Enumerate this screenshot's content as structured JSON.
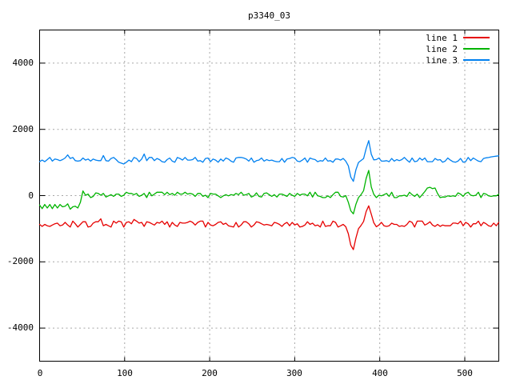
{
  "title": "p3340_03",
  "colors": {
    "background": "#ffffff",
    "border": "#000000",
    "grid": "#a6a6a6",
    "series1": "#e60000",
    "series2": "#00b400",
    "series3": "#0080f0"
  },
  "chart_data": {
    "type": "line",
    "title": "p3340_03",
    "xlabel": "",
    "ylabel": "",
    "xlim": [
      0,
      540
    ],
    "ylim": [
      -5000,
      5000
    ],
    "xticks": [
      0,
      100,
      200,
      300,
      400,
      500
    ],
    "yticks": [
      -4000,
      -2000,
      0,
      2000,
      4000
    ],
    "grid": true,
    "grid_style": "dashed",
    "legend_position": "top-right-inside",
    "x_start": 0,
    "x_step": 3,
    "series": [
      {
        "name": "line 1",
        "color": "#e60000",
        "values": [
          -870,
          -930,
          -870,
          -910,
          -930,
          -890,
          -850,
          -830,
          -910,
          -890,
          -810,
          -890,
          -950,
          -770,
          -850,
          -950,
          -870,
          -790,
          -790,
          -950,
          -930,
          -830,
          -790,
          -790,
          -700,
          -910,
          -870,
          -910,
          -950,
          -770,
          -830,
          -770,
          -790,
          -950,
          -810,
          -790,
          -850,
          -720,
          -770,
          -830,
          -810,
          -930,
          -790,
          -810,
          -850,
          -890,
          -810,
          -830,
          -770,
          -870,
          -790,
          -950,
          -810,
          -890,
          -930,
          -810,
          -830,
          -830,
          -810,
          -770,
          -810,
          -890,
          -810,
          -770,
          -770,
          -950,
          -810,
          -890,
          -910,
          -870,
          -810,
          -790,
          -870,
          -830,
          -910,
          -930,
          -950,
          -810,
          -950,
          -890,
          -790,
          -790,
          -850,
          -950,
          -890,
          -790,
          -810,
          -850,
          -890,
          -870,
          -890,
          -910,
          -810,
          -830,
          -870,
          -930,
          -850,
          -810,
          -910,
          -810,
          -890,
          -850,
          -950,
          -930,
          -890,
          -790,
          -870,
          -830,
          -910,
          -890,
          -950,
          -770,
          -930,
          -910,
          -910,
          -770,
          -810,
          -950,
          -910,
          -870,
          -940,
          -1150,
          -1500,
          -1630,
          -1280,
          -1000,
          -900,
          -780,
          -480,
          -310,
          -560,
          -820,
          -940,
          -890,
          -810,
          -910,
          -930,
          -910,
          -830,
          -870,
          -870,
          -930,
          -910,
          -930,
          -870,
          -770,
          -810,
          -950,
          -770,
          -770,
          -770,
          -890,
          -850,
          -790,
          -890,
          -930,
          -870,
          -930,
          -890,
          -910,
          -910,
          -910,
          -830,
          -830,
          -850,
          -770,
          -910,
          -810,
          -850,
          -950,
          -850,
          -850,
          -770,
          -910,
          -810,
          -850,
          -910,
          -930,
          -830,
          -910,
          -810
        ]
      },
      {
        "name": "line 2",
        "color": "#00b400",
        "values": [
          -285,
          -393,
          -267,
          -375,
          -267,
          -393,
          -267,
          -375,
          -267,
          -339,
          -321,
          -249,
          -411,
          -339,
          -321,
          -375,
          -200,
          140,
          10,
          47,
          -61,
          -25,
          83,
          65,
          11,
          65,
          -43,
          -7,
          29,
          -25,
          47,
          47,
          -25,
          11,
          101,
          65,
          65,
          29,
          65,
          -25,
          11,
          65,
          -61,
          101,
          -7,
          47,
          101,
          101,
          101,
          29,
          101,
          29,
          65,
          11,
          101,
          47,
          47,
          101,
          47,
          65,
          47,
          -25,
          65,
          65,
          -25,
          11,
          -61,
          65,
          47,
          47,
          -7,
          -61,
          -7,
          29,
          -7,
          29,
          11,
          65,
          29,
          101,
          11,
          29,
          65,
          -43,
          -7,
          83,
          -25,
          -43,
          65,
          83,
          29,
          -25,
          29,
          -43,
          47,
          47,
          11,
          -25,
          65,
          11,
          -25,
          65,
          11,
          47,
          47,
          -7,
          101,
          -43,
          101,
          -7,
          -25,
          -61,
          -61,
          -7,
          -61,
          29,
          101,
          101,
          -25,
          -43,
          0,
          -200,
          -460,
          -550,
          -260,
          -60,
          30,
          150,
          520,
          760,
          260,
          40,
          -61,
          11,
          -7,
          29,
          65,
          -25,
          101,
          -61,
          -61,
          -7,
          -7,
          11,
          -25,
          101,
          29,
          -25,
          47,
          -61,
          29,
          120,
          230,
          250,
          210,
          230,
          60,
          -60,
          -40,
          -43,
          -7,
          -25,
          -7,
          -25,
          83,
          47,
          -25,
          65,
          101,
          11,
          -7,
          11,
          101,
          -61,
          65,
          47,
          -7,
          -25,
          -7,
          -7,
          40
        ]
      },
      {
        "name": "line 3",
        "color": "#0080f0",
        "values": [
          1024,
          1072,
          1024,
          1088,
          1152,
          1040,
          1104,
          1088,
          1056,
          1088,
          1136,
          1230,
          1120,
          1152,
          1056,
          1040,
          1056,
          1136,
          1072,
          1104,
          1040,
          1104,
          1072,
          1056,
          1056,
          1210,
          1056,
          1040,
          1120,
          1152,
          1088,
          1008,
          980,
          955,
          1005,
          1072,
          1024,
          1152,
          1120,
          1024,
          1104,
          1255,
          1056,
          1152,
          1152,
          1056,
          1120,
          1088,
          1024,
          1008,
          1088,
          1136,
          1040,
          1008,
          1152,
          1120,
          1072,
          1152,
          1072,
          1072,
          1088,
          1152,
          1040,
          1056,
          1008,
          1120,
          1136,
          1024,
          1104,
          1072,
          1008,
          1104,
          1040,
          1136,
          1104,
          1040,
          1008,
          1136,
          1152,
          1152,
          1136,
          1104,
          1040,
          1136,
          1008,
          1056,
          1072,
          1136,
          1040,
          1088,
          1056,
          1072,
          1040,
          1024,
          1024,
          1120,
          1008,
          1104,
          1120,
          1152,
          1136,
          1040,
          1024,
          1072,
          1136,
          1008,
          1136,
          1104,
          1088,
          1024,
          1056,
          1040,
          1136,
          1040,
          1056,
          1008,
          1104,
          1104,
          1072,
          1120,
          1040,
          900,
          560,
          430,
          780,
          1000,
          1060,
          1120,
          1420,
          1660,
          1250,
          1080,
          1088,
          1136,
          1040,
          1040,
          1056,
          1024,
          1120,
          1040,
          1088,
          1056,
          1088,
          1152,
          1072,
          1008,
          1136,
          1024,
          1040,
          1136,
          1072,
          1136,
          1024,
          1024,
          1024,
          1120,
          1072,
          1088,
          1008,
          1040,
          1136,
          1072,
          1024,
          1008,
          1040,
          1120,
          1008,
          1024,
          1152,
          1056,
          1136,
          1088,
          1040,
          1024,
          1120,
          1140,
          1150,
          1170,
          1180,
          1190,
          1200
        ]
      }
    ]
  }
}
